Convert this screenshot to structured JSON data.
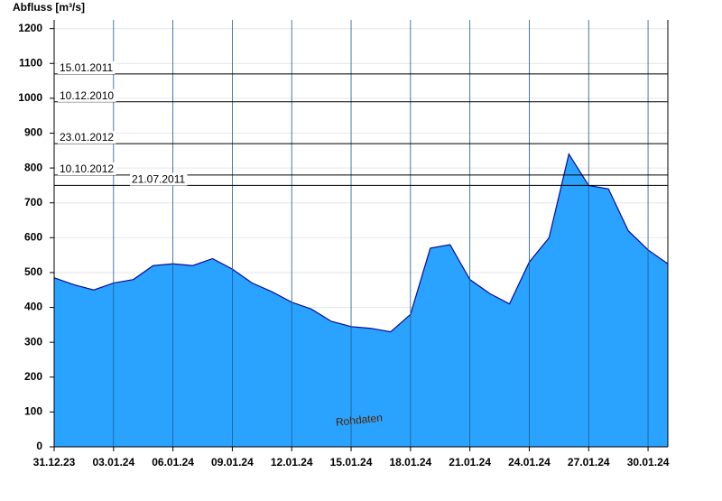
{
  "chart_data": {
    "type": "area",
    "y_label": "Abfluss [m³/s]",
    "watermark": "Rohdaten",
    "x": [
      "31.12.23",
      "01.01.24",
      "02.01.24",
      "03.01.24",
      "04.01.24",
      "05.01.24",
      "06.01.24",
      "07.01.24",
      "08.01.24",
      "09.01.24",
      "10.01.24",
      "11.01.24",
      "12.01.24",
      "13.01.24",
      "14.01.24",
      "15.01.24",
      "16.01.24",
      "17.01.24",
      "18.01.24",
      "19.01.24",
      "20.01.24",
      "21.01.24",
      "22.01.24",
      "23.01.24",
      "24.01.24",
      "25.01.24",
      "26.01.24",
      "27.01.24",
      "28.01.24",
      "29.01.24",
      "30.01.24",
      "31.01.24"
    ],
    "series": [
      {
        "name": "Abfluss",
        "color": "#29a3ff",
        "line_color": "#0a0a9a",
        "values": [
          485,
          465,
          450,
          470,
          480,
          520,
          525,
          520,
          540,
          510,
          470,
          445,
          415,
          395,
          360,
          345,
          340,
          330,
          380,
          570,
          580,
          480,
          440,
          410,
          530,
          600,
          840,
          750,
          740,
          620,
          565,
          525
        ]
      }
    ],
    "xlim": [
      "31.12.23",
      "31.01.24"
    ],
    "xticks": [
      "31.12.23",
      "03.01.24",
      "06.01.24",
      "09.01.24",
      "12.01.24",
      "15.01.24",
      "18.01.24",
      "21.01.24",
      "24.01.24",
      "27.01.24",
      "30.01.24"
    ],
    "ylim": [
      0,
      1225
    ],
    "yticks": [
      0,
      100,
      200,
      300,
      400,
      500,
      600,
      700,
      800,
      900,
      1000,
      1100,
      1200
    ],
    "grid": true,
    "reference_lines": [
      {
        "label": "15.01.2011",
        "value": 1070
      },
      {
        "label": "10.12.2010",
        "value": 990
      },
      {
        "label": "23.01.2012",
        "value": 870
      },
      {
        "label": "10.10.2012",
        "value": 780
      },
      {
        "label": "21.07.2011",
        "value": 750
      }
    ]
  }
}
